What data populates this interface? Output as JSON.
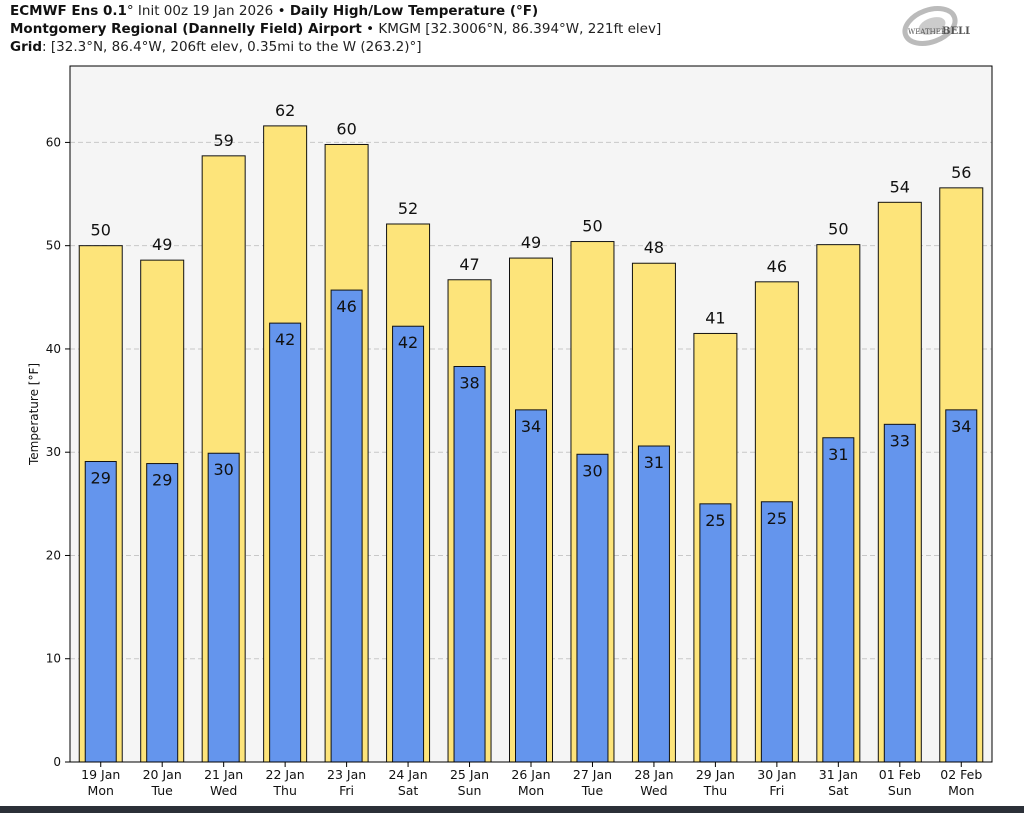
{
  "header": {
    "model": "ECMWF Ens 0.1",
    "model_deg": "°",
    "init": "Init 00z 19 Jan 2026",
    "sep": "•",
    "product": "Daily High/Low Temperature (°F)",
    "station": "Montgomery Regional (Dannelly Field) Airport",
    "station_info": "KMGM [32.3006°N, 86.394°W, 221ft elev]",
    "grid_label": "Grid",
    "grid_info": ": [32.3°N, 86.4°W, 206ft elev, 0.35mi to the W (263.2)°]"
  },
  "logo": {
    "text_a": "Weather",
    "text_b": "BELL"
  },
  "chart_data": {
    "type": "bar",
    "ylabel": "Temperature [°F]",
    "ylim": [
      0,
      67.4
    ],
    "yticks": [
      0,
      10,
      20,
      30,
      40,
      50,
      60
    ],
    "grid": "horizontal dashed",
    "categories": [
      [
        "19 Jan",
        "Mon"
      ],
      [
        "20 Jan",
        "Tue"
      ],
      [
        "21 Jan",
        "Wed"
      ],
      [
        "22 Jan",
        "Thu"
      ],
      [
        "23 Jan",
        "Fri"
      ],
      [
        "24 Jan",
        "Sat"
      ],
      [
        "25 Jan",
        "Sun"
      ],
      [
        "26 Jan",
        "Mon"
      ],
      [
        "27 Jan",
        "Tue"
      ],
      [
        "28 Jan",
        "Wed"
      ],
      [
        "29 Jan",
        "Thu"
      ],
      [
        "30 Jan",
        "Fri"
      ],
      [
        "31 Jan",
        "Sat"
      ],
      [
        "01 Feb",
        "Sun"
      ],
      [
        "02 Feb",
        "Mon"
      ]
    ],
    "series": [
      {
        "key": "high",
        "color": "#fde47a",
        "values": [
          50.0,
          48.6,
          58.7,
          61.6,
          59.8,
          52.1,
          46.7,
          48.8,
          50.4,
          48.3,
          41.5,
          46.5,
          50.1,
          54.2,
          55.6
        ],
        "labels": [
          "50",
          "49",
          "59",
          "62",
          "60",
          "52",
          "47",
          "49",
          "50",
          "48",
          "41",
          "46",
          "50",
          "54",
          "56"
        ]
      },
      {
        "key": "low",
        "color": "#6495ed",
        "values": [
          29.1,
          28.9,
          29.9,
          42.5,
          45.7,
          42.2,
          38.3,
          34.1,
          29.8,
          30.6,
          25.0,
          25.2,
          31.4,
          32.7,
          34.1
        ],
        "labels": [
          "29",
          "29",
          "30",
          "42",
          "46",
          "42",
          "38",
          "34",
          "30",
          "31",
          "25",
          "25",
          "31",
          "33",
          "34"
        ]
      }
    ]
  }
}
